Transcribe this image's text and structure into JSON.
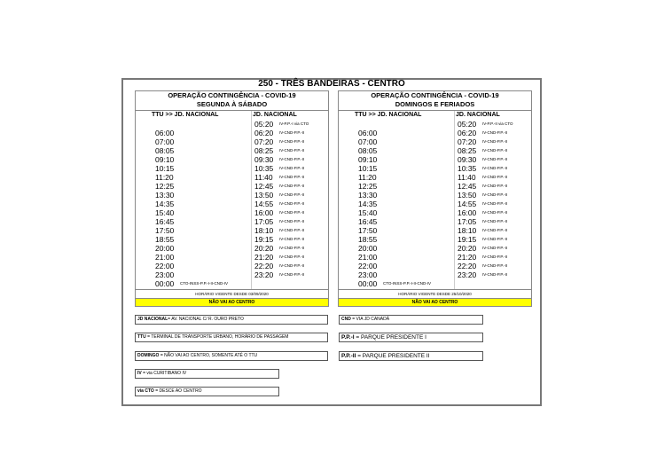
{
  "title": "250 - TRÊS BANDEIRAS - CENTRO",
  "tables": [
    {
      "heading": "OPERAÇÃO CONTINGÊNCIA - COVID-19",
      "subheading": "SEGUNDA À SÁBADO",
      "col1": "TTU >> JD. NACIONAL",
      "col2": "JD. NACIONAL",
      "rows": [
        {
          "t1": "",
          "n1": "",
          "t2": "05:20",
          "n2": "IV-P.P.-I via CTO"
        },
        {
          "t1": "06:00",
          "n1": "",
          "t2": "06:20",
          "n2": "IV-CND-P.P.-II"
        },
        {
          "t1": "07:00",
          "n1": "",
          "t2": "07:20",
          "n2": "IV-CND-P.P.-II"
        },
        {
          "t1": "08:05",
          "n1": "",
          "t2": "08:25",
          "n2": "IV-CND-P.P.-II"
        },
        {
          "t1": "09:10",
          "n1": "",
          "t2": "09:30",
          "n2": "IV-CND-P.P.-II"
        },
        {
          "t1": "10:15",
          "n1": "",
          "t2": "10:35",
          "n2": "IV-CND-P.P.-II"
        },
        {
          "t1": "11:20",
          "n1": "",
          "t2": "11:40",
          "n2": "IV-CND-P.P.-II"
        },
        {
          "t1": "12:25",
          "n1": "",
          "t2": "12:45",
          "n2": "IV-CND-P.P.-II"
        },
        {
          "t1": "13:30",
          "n1": "",
          "t2": "13:50",
          "n2": "IV-CND-P.P.-II"
        },
        {
          "t1": "14:35",
          "n1": "",
          "t2": "14:55",
          "n2": "IV-CND-P.P.-II"
        },
        {
          "t1": "15:40",
          "n1": "",
          "t2": "16:00",
          "n2": "IV-CND-P.P.-II"
        },
        {
          "t1": "16:45",
          "n1": "",
          "t2": "17:05",
          "n2": "IV-CND-P.P.-II"
        },
        {
          "t1": "17:50",
          "n1": "",
          "t2": "18:10",
          "n2": "IV-CND-P.P.-II"
        },
        {
          "t1": "18:55",
          "n1": "",
          "t2": "19:15",
          "n2": "IV-CND-P.P.-II"
        },
        {
          "t1": "20:00",
          "n1": "",
          "t2": "20:20",
          "n2": "IV-CND-P.P.-II"
        },
        {
          "t1": "21:00",
          "n1": "",
          "t2": "21:20",
          "n2": "IV-CND-P.P.-II"
        },
        {
          "t1": "22:00",
          "n1": "",
          "t2": "22:20",
          "n2": "IV-CND-P.P.-II"
        },
        {
          "t1": "23:00",
          "n1": "",
          "t2": "23:20",
          "n2": "IV-CND-P.P.-II"
        },
        {
          "t1": "00:00",
          "n1": "CTO-INSS-P.P.-I-II-CND-IV",
          "t2": "",
          "n2": ""
        }
      ],
      "vigente": "HORÁRIO VIGENTE DESDE 03/09/2020",
      "nao_vai": "NÃO VAI AO CENTRO"
    },
    {
      "heading": "OPERAÇÃO CONTINGÊNCIA - COVID-19",
      "subheading": "DOMINGOS E FERIADOS",
      "col1": "TTU >> JD. NACIONAL",
      "col2": "JD. NACIONAL",
      "rows": [
        {
          "t1": "",
          "n1": "",
          "t2": "05:20",
          "n2": "IV-P.P.-II via CTO"
        },
        {
          "t1": "06:00",
          "n1": "",
          "t2": "06:20",
          "n2": "IV-CND-P.P.-II"
        },
        {
          "t1": "07:00",
          "n1": "",
          "t2": "07:20",
          "n2": "IV-CND-P.P.-II"
        },
        {
          "t1": "08:05",
          "n1": "",
          "t2": "08:25",
          "n2": "IV-CND-P.P.-II"
        },
        {
          "t1": "09:10",
          "n1": "",
          "t2": "09:30",
          "n2": "IV-CND-P.P.-II"
        },
        {
          "t1": "10:15",
          "n1": "",
          "t2": "10:35",
          "n2": "IV-CND-P.P.-II"
        },
        {
          "t1": "11:20",
          "n1": "",
          "t2": "11:40",
          "n2": "IV-CND-P.P.-II"
        },
        {
          "t1": "12:25",
          "n1": "",
          "t2": "12:45",
          "n2": "IV-CND-P.P.-II"
        },
        {
          "t1": "13:30",
          "n1": "",
          "t2": "13:50",
          "n2": "IV-CND-P.P.-II"
        },
        {
          "t1": "14:35",
          "n1": "",
          "t2": "14:55",
          "n2": "IV-CND-P.P.-II"
        },
        {
          "t1": "15:40",
          "n1": "",
          "t2": "16:00",
          "n2": "IV-CND-P.P.-II"
        },
        {
          "t1": "16:45",
          "n1": "",
          "t2": "17:05",
          "n2": "IV-CND-P.P.-II"
        },
        {
          "t1": "17:50",
          "n1": "",
          "t2": "18:10",
          "n2": "IV-CND-P.P.-II"
        },
        {
          "t1": "18:55",
          "n1": "",
          "t2": "19:15",
          "n2": "IV-CND-P.P.-II"
        },
        {
          "t1": "20:00",
          "n1": "",
          "t2": "20:20",
          "n2": "IV-CND-P.P.-II"
        },
        {
          "t1": "21:00",
          "n1": "",
          "t2": "21:20",
          "n2": "IV-CND-P.P.-II"
        },
        {
          "t1": "22:00",
          "n1": "",
          "t2": "22:20",
          "n2": "IV-CND-P.P.-II"
        },
        {
          "t1": "23:00",
          "n1": "",
          "t2": "23:20",
          "n2": "IV-CND-P.P.-II"
        },
        {
          "t1": "00:00",
          "n1": "CTO-INSS-P.P.-I-II-CND-IV",
          "t2": "",
          "n2": ""
        }
      ],
      "vigente": "HORÁRIO VIGENTE DESDE 25/10/2020",
      "nao_vai": "NÃO VAI AO CENTRO"
    }
  ],
  "legend": [
    {
      "key": "JD NACIONAL",
      "text": "= AV. NACIONAL C/ R. OURO PRETO"
    },
    {
      "key": "CND",
      "text": " = VIA JD CANADÁ"
    },
    {
      "key": "TTU",
      "text": " = TERMINAL DE TRANSPORTE URBANO, HORÁRIO DE PASSAGEM"
    },
    {
      "key": "P.P.-I",
      "text": " = PARQUE PRESIDENTE I"
    },
    {
      "key": "DOMINGO",
      "text": " = NÃO VAI AO CENTRO, SOMENTE ATÉ O TTU"
    },
    {
      "key": "P.P.-II",
      "text": " = PARQUE PRESIDENTE II"
    },
    {
      "key": "IV",
      "text": " = via CURITIBANO IV"
    },
    {
      "key": "via CTO",
      "text": " = DESCE AO CENTRO"
    }
  ],
  "colors": {
    "highlight": "#ffff00",
    "border": "#888888"
  }
}
